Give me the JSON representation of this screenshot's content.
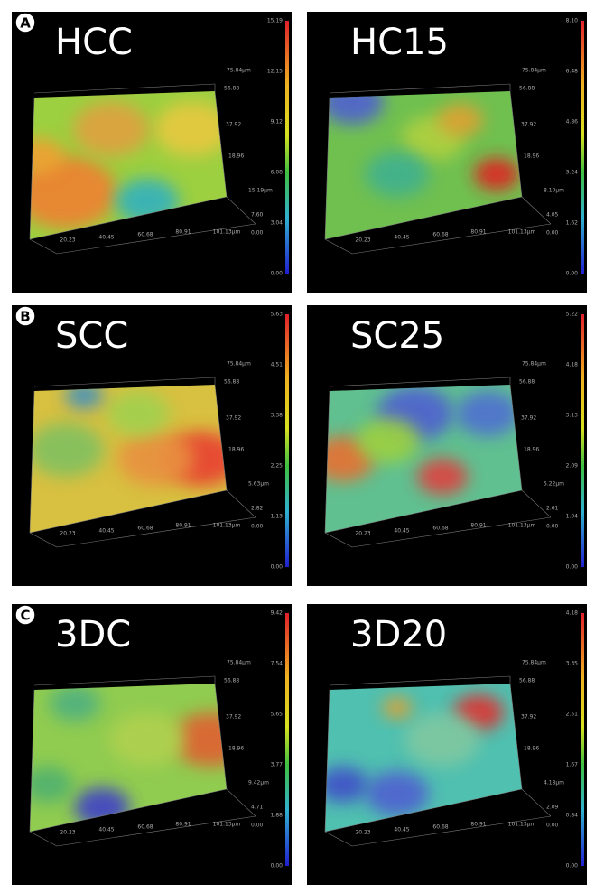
{
  "x_ticks": [
    "20.23",
    "40.45",
    "60.68",
    "80.91",
    "101.13µm"
  ],
  "y_ticks": [
    "75.84µm",
    "56.88",
    "37.92",
    "18.96"
  ],
  "panels": [
    {
      "label": "A",
      "title": "HCC",
      "colorbar": [
        "15.19",
        "12.15",
        "9.12",
        "6.08",
        "3.04",
        "0.00"
      ],
      "z_ticks": [
        "15.19µm",
        "7.60",
        "0.00"
      ]
    },
    {
      "label": null,
      "title": "HC15",
      "colorbar": [
        "8.10",
        "6.48",
        "4.86",
        "3.24",
        "1.62",
        "0.00"
      ],
      "z_ticks": [
        "8.10µm",
        "4.05",
        "0.00"
      ]
    },
    {
      "label": "B",
      "title": "SCC",
      "colorbar": [
        "5.63",
        "4.51",
        "3.38",
        "2.25",
        "1.13",
        "0.00"
      ],
      "z_ticks": [
        "5.63µm",
        "2.82",
        "0.00"
      ]
    },
    {
      "label": null,
      "title": "SC25",
      "colorbar": [
        "5.22",
        "4.18",
        "3.13",
        "2.09",
        "1.04",
        "0.00"
      ],
      "z_ticks": [
        "5.22µm",
        "2.61",
        "0.00"
      ]
    },
    {
      "label": "C",
      "title": "3DC",
      "colorbar": [
        "9.42",
        "7.54",
        "5.65",
        "3.77",
        "1.88",
        "0.00"
      ],
      "z_ticks": [
        "9.42µm",
        "4.71",
        "0.00"
      ]
    },
    {
      "label": null,
      "title": "3D20",
      "colorbar": [
        "4.18",
        "3.35",
        "2.51",
        "1.67",
        "0.84",
        "0.00"
      ],
      "z_ticks": [
        "4.18µm",
        "2.09",
        "0.00"
      ]
    }
  ]
}
